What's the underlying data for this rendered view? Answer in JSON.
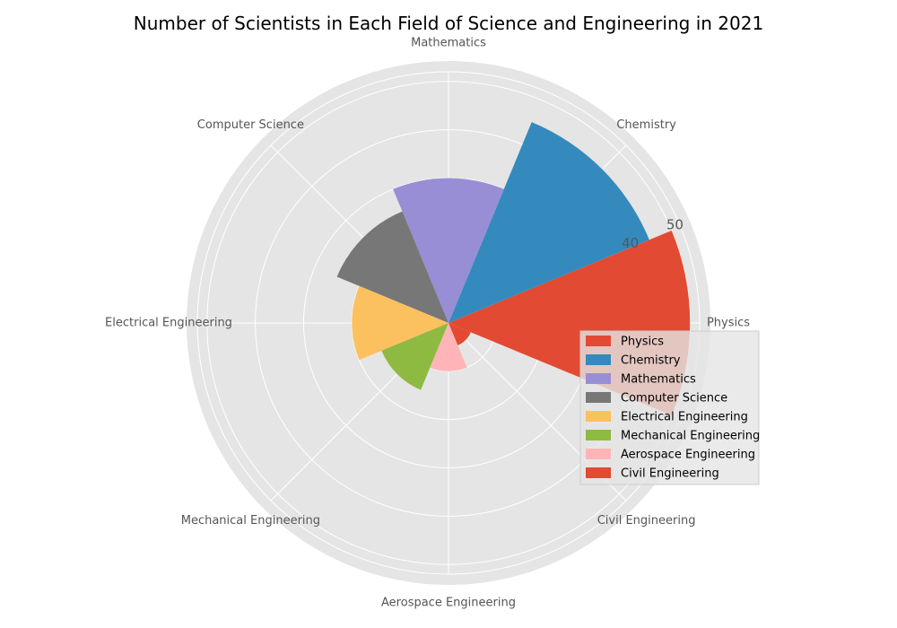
{
  "chart_data": {
    "type": "polar-bar",
    "title": "Number of Scientists in Each Field of Science and Engineering in 2021",
    "categories": [
      "Physics",
      "Chemistry",
      "Mathematics",
      "Computer Science",
      "Electrical Engineering",
      "Mechanical Engineering",
      "Aerospace Engineering",
      "Civil Engineering"
    ],
    "values": [
      50,
      45,
      30,
      25,
      20,
      15,
      10,
      5
    ],
    "rlim": [
      0,
      52
    ],
    "rticks": [
      10,
      20,
      30,
      40,
      50
    ],
    "rtick_labels": [
      "",
      "",
      "",
      "40",
      "50"
    ],
    "colors": [
      "#E24A33",
      "#348ABD",
      "#988ED5",
      "#777777",
      "#FBC15E",
      "#8EBA42",
      "#FFB5B8",
      "#E24A33"
    ],
    "grid": true,
    "legend_position": "right",
    "background": "#E5E5E5"
  }
}
